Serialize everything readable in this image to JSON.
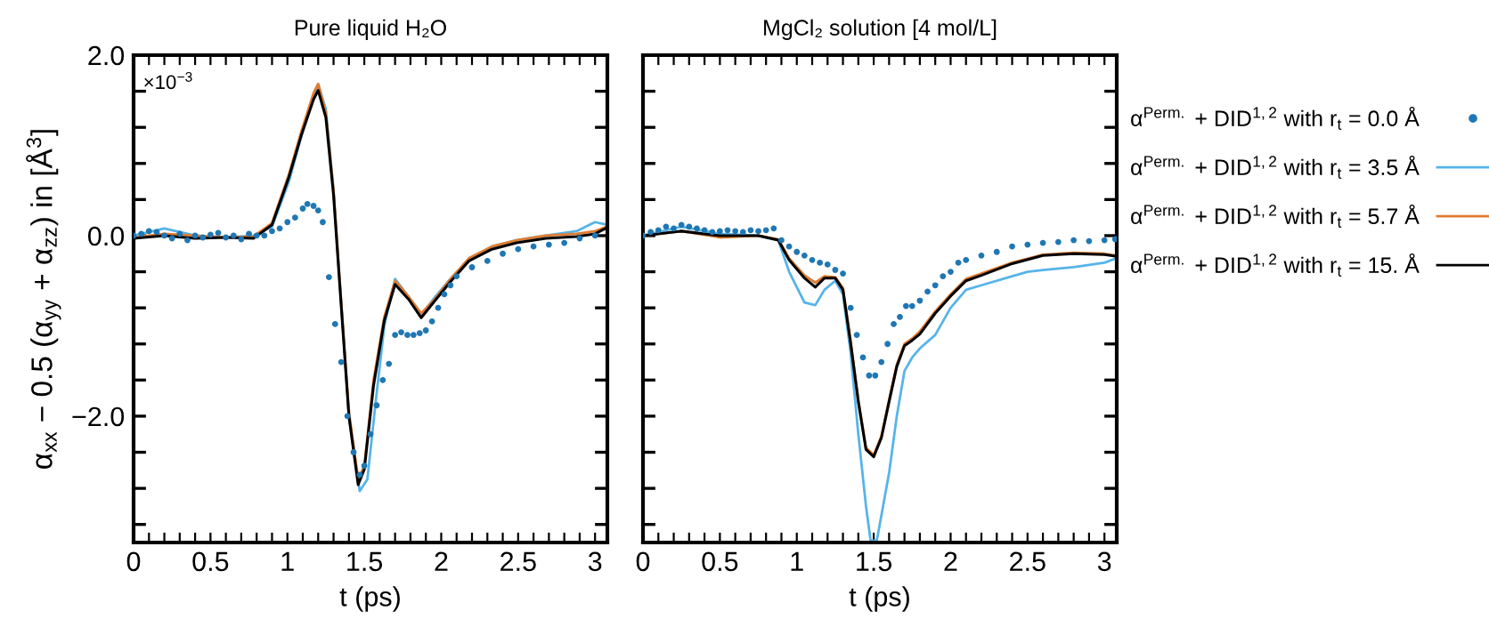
{
  "chart_data": [
    {
      "type": "line",
      "title": "Pure liquid H₂O",
      "xlabel": "t (ps)",
      "ylabel": "α$_{xx}$ − 0.5 (α$_{yy}$ + α$_{zz}$) in [Å$^{3}$]",
      "annotations": [
        "×10$^{−3}$"
      ],
      "xlim": [
        0,
        3.08
      ],
      "ylim": [
        -3.4,
        2.0
      ],
      "xticks": [
        {
          "value": 0,
          "label": "0"
        },
        {
          "value": 0.1,
          "label": null
        },
        {
          "value": 0.2,
          "label": null
        },
        {
          "value": 0.3,
          "label": null
        },
        {
          "value": 0.4,
          "label": null
        },
        {
          "value": 0.5,
          "label": "0.5"
        },
        {
          "value": 0.6,
          "label": null
        },
        {
          "value": 0.7,
          "label": null
        },
        {
          "value": 0.8,
          "label": null
        },
        {
          "value": 0.9,
          "label": null
        },
        {
          "value": 1,
          "label": "1"
        },
        {
          "value": 1.1,
          "label": null
        },
        {
          "value": 1.2,
          "label": null
        },
        {
          "value": 1.3,
          "label": null
        },
        {
          "value": 1.4,
          "label": null
        },
        {
          "value": 1.5,
          "label": "1.5"
        },
        {
          "value": 1.6,
          "label": null
        },
        {
          "value": 1.7,
          "label": null
        },
        {
          "value": 1.8,
          "label": null
        },
        {
          "value": 1.9,
          "label": null
        },
        {
          "value": 2,
          "label": "2"
        },
        {
          "value": 2.1,
          "label": null
        },
        {
          "value": 2.2,
          "label": null
        },
        {
          "value": 2.3,
          "label": null
        },
        {
          "value": 2.4,
          "label": null
        },
        {
          "value": 2.5,
          "label": "2.5"
        },
        {
          "value": 2.6,
          "label": null
        },
        {
          "value": 2.7,
          "label": null
        },
        {
          "value": 2.8,
          "label": null
        },
        {
          "value": 2.9,
          "label": null
        },
        {
          "value": 3,
          "label": "3"
        }
      ],
      "yticks": [
        {
          "value": -3.2,
          "label": null
        },
        {
          "value": -2.8,
          "label": null
        },
        {
          "value": -2.4,
          "label": null
        },
        {
          "value": -2.0,
          "label": "−2.0"
        },
        {
          "value": -1.6,
          "label": null
        },
        {
          "value": -1.2,
          "label": null
        },
        {
          "value": -0.8,
          "label": null
        },
        {
          "value": -0.4,
          "label": null
        },
        {
          "value": 0.0,
          "label": "0.0"
        },
        {
          "value": 0.4,
          "label": null
        },
        {
          "value": 0.8,
          "label": null
        },
        {
          "value": 1.2,
          "label": null
        },
        {
          "value": 1.6,
          "label": null
        },
        {
          "value": 2.0,
          "label": "2.0"
        }
      ],
      "grid": false,
      "legend": false,
      "series": [
        {
          "type": "scatter",
          "marker": "circle",
          "color": "#1f77b4",
          "x": [
            0,
            0.05,
            0.1,
            0.15,
            0.2,
            0.25,
            0.3,
            0.35,
            0.4,
            0.45,
            0.5,
            0.55,
            0.6,
            0.65,
            0.7,
            0.75,
            0.8,
            0.85,
            0.9,
            0.95,
            1.0,
            1.05,
            1.1,
            1.13,
            1.17,
            1.2,
            1.23,
            1.27,
            1.31,
            1.35,
            1.39,
            1.43,
            1.47,
            1.5,
            1.54,
            1.58,
            1.62,
            1.66,
            1.7,
            1.74,
            1.78,
            1.82,
            1.86,
            1.9,
            1.94,
            1.98,
            2.02,
            2.06,
            2.1,
            2.2,
            2.3,
            2.4,
            2.5,
            2.6,
            2.7,
            2.8,
            2.9,
            3.0
          ],
          "values": [
            0.0,
            0.02,
            0.05,
            0.04,
            0.0,
            -0.03,
            0.02,
            -0.05,
            0.0,
            -0.02,
            0.01,
            0.03,
            -0.02,
            0.0,
            -0.04,
            0.02,
            0.0,
            0.0,
            0.05,
            0.08,
            0.15,
            0.2,
            0.3,
            0.35,
            0.33,
            0.28,
            0.15,
            -0.46,
            -0.98,
            -1.4,
            -2.0,
            -2.4,
            -2.65,
            -2.55,
            -2.2,
            -1.88,
            -1.6,
            -1.42,
            -1.1,
            -1.07,
            -1.1,
            -1.1,
            -1.08,
            -1.05,
            -0.95,
            -0.8,
            -0.65,
            -0.55,
            -0.45,
            -0.35,
            -0.28,
            -0.2,
            -0.15,
            -0.12,
            -0.1,
            -0.08,
            -0.03,
            0.0
          ]
        },
        {
          "color": "#56b4e9",
          "x": [
            0,
            0.2,
            0.4,
            0.6,
            0.78,
            0.9,
            1.01,
            1.09,
            1.17,
            1.2,
            1.25,
            1.3,
            1.34,
            1.4,
            1.47,
            1.52,
            1.57,
            1.63,
            1.7,
            1.79,
            1.87,
            1.95,
            2.06,
            2.18,
            2.33,
            2.49,
            2.68,
            2.88,
            3.0,
            3.08
          ],
          "values": [
            0.0,
            0.08,
            0.0,
            -0.02,
            0.0,
            0.1,
            0.6,
            1.1,
            1.55,
            1.68,
            1.4,
            0.5,
            -0.5,
            -2.0,
            -2.83,
            -2.7,
            -1.9,
            -1.0,
            -0.48,
            -0.68,
            -0.88,
            -0.7,
            -0.48,
            -0.26,
            -0.12,
            -0.05,
            0.0,
            0.05,
            0.15,
            0.12
          ]
        },
        {
          "color": "#e07b30",
          "x": [
            0,
            0.2,
            0.4,
            0.6,
            0.78,
            0.9,
            1.01,
            1.09,
            1.17,
            1.2,
            1.25,
            1.3,
            1.34,
            1.4,
            1.46,
            1.5,
            1.56,
            1.63,
            1.7,
            1.79,
            1.87,
            1.95,
            2.06,
            2.18,
            2.33,
            2.49,
            2.68,
            2.88,
            3.0,
            3.08
          ],
          "values": [
            -0.02,
            0.02,
            0.0,
            -0.02,
            -0.01,
            0.14,
            0.68,
            1.15,
            1.58,
            1.68,
            1.36,
            0.5,
            -0.5,
            -1.95,
            -2.7,
            -2.55,
            -1.6,
            -0.9,
            -0.5,
            -0.68,
            -0.86,
            -0.72,
            -0.48,
            -0.25,
            -0.12,
            -0.05,
            0.0,
            0.02,
            0.05,
            0.1
          ]
        },
        {
          "color": "#000000",
          "x": [
            0,
            0.2,
            0.4,
            0.6,
            0.78,
            0.9,
            1.01,
            1.09,
            1.17,
            1.2,
            1.25,
            1.3,
            1.34,
            1.4,
            1.46,
            1.5,
            1.56,
            1.63,
            1.7,
            1.79,
            1.87,
            1.95,
            2.06,
            2.18,
            2.33,
            2.49,
            2.68,
            2.88,
            3.0,
            3.08
          ],
          "values": [
            -0.03,
            0.0,
            -0.03,
            -0.02,
            -0.03,
            0.12,
            0.65,
            1.11,
            1.51,
            1.61,
            1.31,
            0.45,
            -0.54,
            -2.0,
            -2.76,
            -2.59,
            -1.66,
            -0.94,
            -0.54,
            -0.71,
            -0.91,
            -0.74,
            -0.51,
            -0.28,
            -0.15,
            -0.08,
            -0.03,
            -0.01,
            0.02,
            0.09
          ]
        }
      ]
    },
    {
      "type": "line",
      "title": "MgCl₂ solution [4 mol/L]",
      "xlabel": "t (ps)",
      "xlim": [
        0,
        3.08
      ],
      "ylim": [
        -3.4,
        2.0
      ],
      "xticks": [
        {
          "value": 0,
          "label": "0"
        },
        {
          "value": 0.1,
          "label": null
        },
        {
          "value": 0.2,
          "label": null
        },
        {
          "value": 0.3,
          "label": null
        },
        {
          "value": 0.4,
          "label": null
        },
        {
          "value": 0.5,
          "label": "0.5"
        },
        {
          "value": 0.6,
          "label": null
        },
        {
          "value": 0.7,
          "label": null
        },
        {
          "value": 0.8,
          "label": null
        },
        {
          "value": 0.9,
          "label": null
        },
        {
          "value": 1,
          "label": "1"
        },
        {
          "value": 1.1,
          "label": null
        },
        {
          "value": 1.2,
          "label": null
        },
        {
          "value": 1.3,
          "label": null
        },
        {
          "value": 1.4,
          "label": null
        },
        {
          "value": 1.5,
          "label": "1.5"
        },
        {
          "value": 1.6,
          "label": null
        },
        {
          "value": 1.7,
          "label": null
        },
        {
          "value": 1.8,
          "label": null
        },
        {
          "value": 1.9,
          "label": null
        },
        {
          "value": 2,
          "label": "2"
        },
        {
          "value": 2.1,
          "label": null
        },
        {
          "value": 2.2,
          "label": null
        },
        {
          "value": 2.3,
          "label": null
        },
        {
          "value": 2.4,
          "label": null
        },
        {
          "value": 2.5,
          "label": "2.5"
        },
        {
          "value": 2.6,
          "label": null
        },
        {
          "value": 2.7,
          "label": null
        },
        {
          "value": 2.8,
          "label": null
        },
        {
          "value": 2.9,
          "label": null
        },
        {
          "value": 3,
          "label": "3"
        }
      ],
      "yticks": [
        {
          "value": -3.2,
          "label": null
        },
        {
          "value": -2.8,
          "label": null
        },
        {
          "value": -2.4,
          "label": null
        },
        {
          "value": -2.0,
          "label": null
        },
        {
          "value": -1.6,
          "label": null
        },
        {
          "value": -1.2,
          "label": null
        },
        {
          "value": -0.8,
          "label": null
        },
        {
          "value": -0.4,
          "label": null
        },
        {
          "value": 0.0,
          "label": null
        },
        {
          "value": 0.4,
          "label": null
        },
        {
          "value": 0.8,
          "label": null
        },
        {
          "value": 1.2,
          "label": null
        },
        {
          "value": 1.6,
          "label": null
        },
        {
          "value": 2.0,
          "label": null
        }
      ],
      "tick_labels": "x",
      "grid": false,
      "legend": "right",
      "series": [
        {
          "name": "α$^{Perm.}$ + DID$^{1,2}$ with r$_{t}$ = 0.0 Å",
          "type": "scatter",
          "marker": "circle",
          "color": "#1f77b4",
          "x": [
            0,
            0.05,
            0.1,
            0.15,
            0.2,
            0.25,
            0.3,
            0.35,
            0.4,
            0.45,
            0.5,
            0.55,
            0.6,
            0.65,
            0.7,
            0.75,
            0.8,
            0.85,
            0.9,
            0.95,
            1.0,
            1.05,
            1.1,
            1.15,
            1.2,
            1.25,
            1.3,
            1.35,
            1.39,
            1.43,
            1.47,
            1.51,
            1.55,
            1.59,
            1.63,
            1.67,
            1.71,
            1.75,
            1.8,
            1.85,
            1.9,
            1.95,
            2.0,
            2.05,
            2.1,
            2.2,
            2.3,
            2.4,
            2.5,
            2.6,
            2.7,
            2.8,
            2.9,
            3.0,
            3.07
          ],
          "values": [
            0.0,
            0.04,
            0.06,
            0.1,
            0.08,
            0.12,
            0.1,
            0.08,
            0.06,
            0.04,
            0.05,
            0.06,
            0.05,
            0.04,
            0.06,
            0.05,
            0.06,
            0.08,
            -0.05,
            -0.12,
            -0.18,
            -0.22,
            -0.27,
            -0.3,
            -0.32,
            -0.38,
            -0.42,
            -0.8,
            -1.1,
            -1.35,
            -1.55,
            -1.55,
            -1.4,
            -1.2,
            -0.98,
            -0.9,
            -0.78,
            -0.78,
            -0.72,
            -0.62,
            -0.55,
            -0.45,
            -0.4,
            -0.3,
            -0.27,
            -0.22,
            -0.18,
            -0.12,
            -0.1,
            -0.08,
            -0.07,
            -0.05,
            -0.06,
            -0.05,
            -0.04
          ]
        },
        {
          "name": "α$^{Perm.}$ + DID$^{1,2}$ with r$_{t}$ = 3.5 Å",
          "color": "#56b4e9",
          "x": [
            0,
            0.25,
            0.5,
            0.75,
            0.88,
            0.95,
            1.05,
            1.12,
            1.18,
            1.25,
            1.3,
            1.35,
            1.4,
            1.45,
            1.48,
            1.52,
            1.6,
            1.65,
            1.7,
            1.75,
            1.8,
            1.9,
            2.0,
            2.1,
            2.2,
            2.4,
            2.5,
            2.6,
            2.8,
            3.0,
            3.08
          ],
          "values": [
            0.0,
            0.1,
            0.02,
            0.0,
            -0.05,
            -0.4,
            -0.74,
            -0.77,
            -0.6,
            -0.5,
            -0.65,
            -1.3,
            -2.2,
            -3.0,
            -3.38,
            -3.38,
            -2.63,
            -2.0,
            -1.5,
            -1.35,
            -1.25,
            -1.1,
            -0.8,
            -0.6,
            -0.55,
            -0.45,
            -0.4,
            -0.38,
            -0.35,
            -0.3,
            -0.25
          ]
        },
        {
          "name": "α$^{Perm.}$ + DID$^{1,2}$ with r$_{t}$ = 5.7 Å",
          "color": "#e07b30",
          "x": [
            0,
            0.25,
            0.5,
            0.75,
            0.88,
            0.95,
            1.05,
            1.12,
            1.18,
            1.25,
            1.3,
            1.35,
            1.4,
            1.45,
            1.5,
            1.55,
            1.6,
            1.65,
            1.7,
            1.75,
            1.8,
            1.9,
            2.0,
            2.1,
            2.2,
            2.4,
            2.6,
            2.8,
            3.0,
            3.08
          ],
          "values": [
            0.0,
            0.05,
            -0.02,
            0.0,
            -0.04,
            -0.25,
            -0.44,
            -0.52,
            -0.45,
            -0.46,
            -0.58,
            -1.17,
            -1.82,
            -2.35,
            -2.43,
            -2.22,
            -1.82,
            -1.43,
            -1.2,
            -1.14,
            -1.06,
            -0.84,
            -0.65,
            -0.48,
            -0.42,
            -0.3,
            -0.21,
            -0.19,
            -0.2,
            -0.22
          ]
        },
        {
          "name": "α$^{Perm.}$ + DID$^{1,2}$ with r$_{t}$ = 15. Å",
          "color": "#000000",
          "x": [
            0,
            0.25,
            0.5,
            0.75,
            0.88,
            0.95,
            1.05,
            1.12,
            1.18,
            1.25,
            1.3,
            1.35,
            1.4,
            1.45,
            1.5,
            1.55,
            1.6,
            1.65,
            1.7,
            1.75,
            1.8,
            1.9,
            2.0,
            2.1,
            2.2,
            2.4,
            2.6,
            2.8,
            3.0,
            3.08
          ],
          "values": [
            0.0,
            0.05,
            0.0,
            0.0,
            -0.05,
            -0.27,
            -0.47,
            -0.57,
            -0.47,
            -0.47,
            -0.6,
            -1.19,
            -1.84,
            -2.37,
            -2.45,
            -2.24,
            -1.84,
            -1.45,
            -1.22,
            -1.16,
            -1.09,
            -0.86,
            -0.67,
            -0.5,
            -0.44,
            -0.31,
            -0.22,
            -0.2,
            -0.21,
            -0.23
          ]
        }
      ]
    }
  ]
}
